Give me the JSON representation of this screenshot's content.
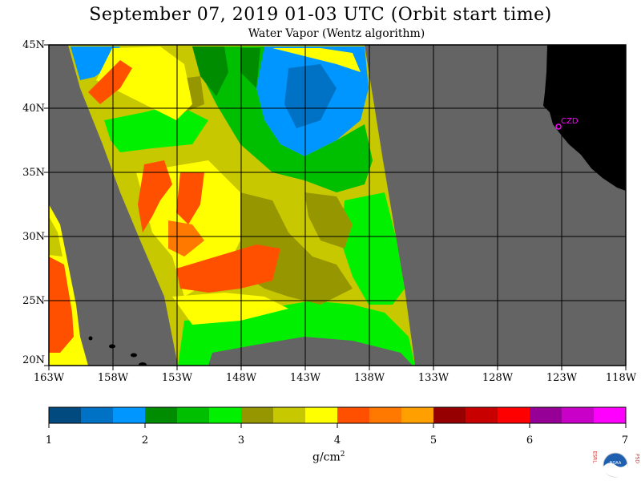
{
  "header": {
    "title": "September 07, 2019  01-03 UTC  (Orbit start time)",
    "subtitle": "Water Vapor (Wentz algorithm)"
  },
  "map": {
    "lat_labels": [
      "45N",
      "40N",
      "35N",
      "30N",
      "25N",
      "20N"
    ],
    "lon_labels": [
      "163W",
      "158W",
      "153W",
      "148W",
      "143W",
      "138W",
      "133W",
      "128W",
      "123W",
      "118W"
    ],
    "station_label": "CZD",
    "colors": {
      "background": "#646464",
      "land": "#000000",
      "station": "#ff00ff"
    }
  },
  "colorbar": {
    "colors": [
      "#004a80",
      "#0072c6",
      "#0096ff",
      "#008c00",
      "#00be00",
      "#00f000",
      "#969600",
      "#c8c800",
      "#ffff00",
      "#ff5000",
      "#ff7800",
      "#ffa000",
      "#960000",
      "#c80000",
      "#ff0000",
      "#960096",
      "#c800c8",
      "#ff00ff"
    ],
    "tick_labels": [
      "1",
      "2",
      "3",
      "4",
      "5",
      "6",
      "7"
    ],
    "unit": "g/cm",
    "unit_sup": "2"
  },
  "logo": {
    "left_letters": "ESRL",
    "right_letters": "PSD",
    "center": "NOAA"
  }
}
